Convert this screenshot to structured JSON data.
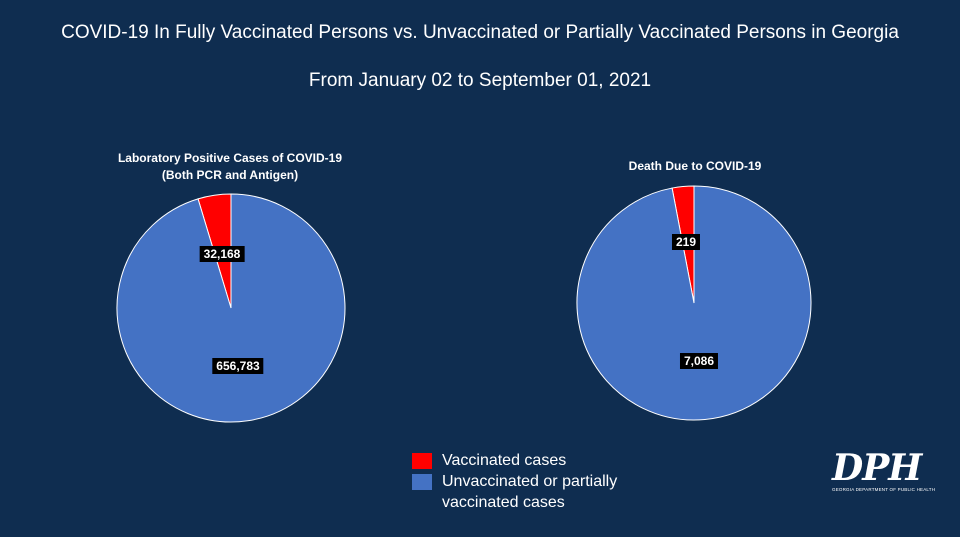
{
  "header": {
    "title": "COVID-19 In Fully Vaccinated Persons vs. Unvaccinated or Partially Vaccinated Persons in Georgia",
    "subtitle": "From January 02 to September 01, 2021"
  },
  "colors": {
    "background": "#0f2d50",
    "vaccinated": "#ff0000",
    "unvaccinated": "#4472c4"
  },
  "chart_data": [
    {
      "type": "pie",
      "title": "Laboratory Positive Cases of COVID-19",
      "subtitle": "(Both PCR and Antigen)",
      "slices": [
        {
          "name": "Vaccinated cases",
          "value": 32168,
          "label": "32,168",
          "color": "#ff0000"
        },
        {
          "name": "Unvaccinated or partially vaccinated cases",
          "value": 656783,
          "label": "656,783",
          "color": "#4472c4"
        }
      ]
    },
    {
      "type": "pie",
      "title": "Death Due to COVID-19",
      "subtitle": "",
      "slices": [
        {
          "name": "Vaccinated cases",
          "value": 219,
          "label": "219",
          "color": "#ff0000"
        },
        {
          "name": "Unvaccinated or partially vaccinated cases",
          "value": 7086,
          "label": "7,086",
          "color": "#4472c4"
        }
      ]
    }
  ],
  "legend": {
    "items": [
      {
        "label": "Vaccinated cases",
        "color": "#ff0000"
      },
      {
        "label": "Unvaccinated or partially vaccinated cases",
        "color": "#4472c4"
      }
    ]
  },
  "logo": {
    "text": "DPH",
    "subtext": "GEORGIA DEPARTMENT OF PUBLIC HEALTH"
  }
}
